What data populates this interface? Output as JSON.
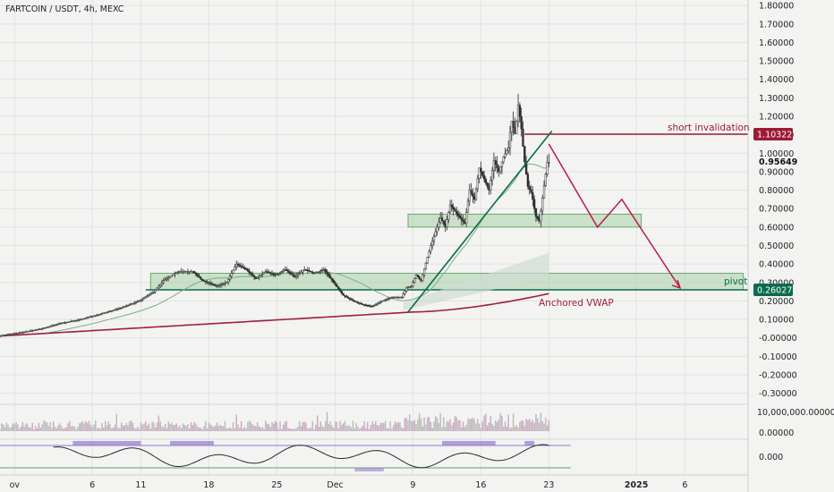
{
  "chart_data": {
    "type": "candlestick",
    "title": "FARTCOIN / USDT, 4h, MEXC",
    "y_axis": {
      "ticks": [
        "1.80000",
        "1.70000",
        "1.60000",
        "1.50000",
        "1.40000",
        "1.30000",
        "1.20000",
        "1.10000",
        "1.00000",
        "0.90000",
        "0.80000",
        "0.70000",
        "0.60000",
        "0.50000",
        "0.40000",
        "0.30000",
        "0.20000",
        "0.10000",
        "-0.00000",
        "-0.10000",
        "-0.20000",
        "-0.30000"
      ],
      "ylim": [
        -0.36,
        1.83
      ]
    },
    "x_axis": {
      "ticks": [
        "ov",
        "6",
        "11",
        "18",
        "25",
        "Dec",
        "9",
        "16",
        "23",
        "2025",
        "6"
      ],
      "tick_days": [
        -2,
        6,
        11,
        18,
        25,
        31,
        39,
        46,
        53,
        62,
        67
      ],
      "xlim": [
        -3.5,
        73.5
      ]
    },
    "price_labels": {
      "short_invalidation": {
        "value": 1.10322,
        "text": "1.10322"
      },
      "pivot": {
        "value": 0.26027,
        "text": "0.26027"
      },
      "last_price": {
        "value": 0.95649,
        "text": "0.95649"
      }
    },
    "annotations": {
      "short_invalidation": "short invalidation",
      "pivot": "pivot",
      "vwap": "Anchored VWAP"
    },
    "zones": [
      {
        "from_day": 12.0,
        "to_day": 73.0,
        "low": 0.26,
        "high": 0.35
      },
      {
        "from_day": 38.5,
        "to_day": 62.5,
        "low": 0.6,
        "high": 0.67
      }
    ],
    "trendline": {
      "points": [
        [
          38.5,
          0.14
        ],
        [
          53.3,
          1.12
        ]
      ]
    },
    "projection_path": [
      [
        53.0,
        1.05
      ],
      [
        58.0,
        0.6
      ],
      [
        60.5,
        0.75
      ],
      [
        66.5,
        0.27
      ]
    ],
    "price_series": {
      "x": [
        -3.5,
        -1,
        1,
        3,
        5,
        7,
        9,
        11,
        12.5,
        13.5,
        15,
        16.5,
        17.5,
        19,
        20,
        21,
        22,
        23,
        24,
        25,
        26,
        27,
        28,
        29,
        30,
        31,
        32,
        33,
        34,
        35,
        36,
        37,
        38,
        38.5,
        39,
        39.5,
        40,
        41,
        42,
        42.5,
        43,
        44,
        44.5,
        45,
        45.5,
        46,
        46.5,
        47,
        47.5,
        48,
        48.5,
        49,
        49.3,
        49.7,
        50,
        50.3,
        50.6,
        51,
        51.4,
        51.8,
        52.2,
        52.6,
        53
      ],
      "y": [
        0.01,
        0.03,
        0.05,
        0.08,
        0.1,
        0.13,
        0.16,
        0.2,
        0.25,
        0.31,
        0.36,
        0.36,
        0.31,
        0.28,
        0.3,
        0.4,
        0.37,
        0.32,
        0.36,
        0.34,
        0.37,
        0.33,
        0.37,
        0.35,
        0.37,
        0.3,
        0.23,
        0.2,
        0.18,
        0.17,
        0.2,
        0.22,
        0.22,
        0.27,
        0.28,
        0.34,
        0.31,
        0.5,
        0.65,
        0.6,
        0.72,
        0.65,
        0.62,
        0.8,
        0.75,
        0.92,
        0.86,
        0.8,
        0.96,
        0.9,
        0.98,
        1.03,
        1.18,
        1.1,
        1.26,
        1.15,
        0.98,
        0.82,
        0.78,
        0.66,
        0.63,
        0.8,
        0.95
      ]
    },
    "volume": {
      "ylabel_ticks": [
        "10,000,000.00000",
        "0.00000"
      ]
    },
    "oscillator": {
      "ylabel_ticks": [
        "0.000"
      ]
    },
    "colors": {
      "background": "#f3f3f2",
      "candle": "#2b2b2b",
      "zone_fill": "#a8cfa5",
      "trendline": "#0b6b4e",
      "invalidation": "#9c1b34",
      "vwap": "#a01e43",
      "projection": "#b51e4e",
      "ma": "#7cae86",
      "osc_line": "#2b2b2b",
      "osc_fill": "#9a7fd1"
    },
    "grid": true
  }
}
